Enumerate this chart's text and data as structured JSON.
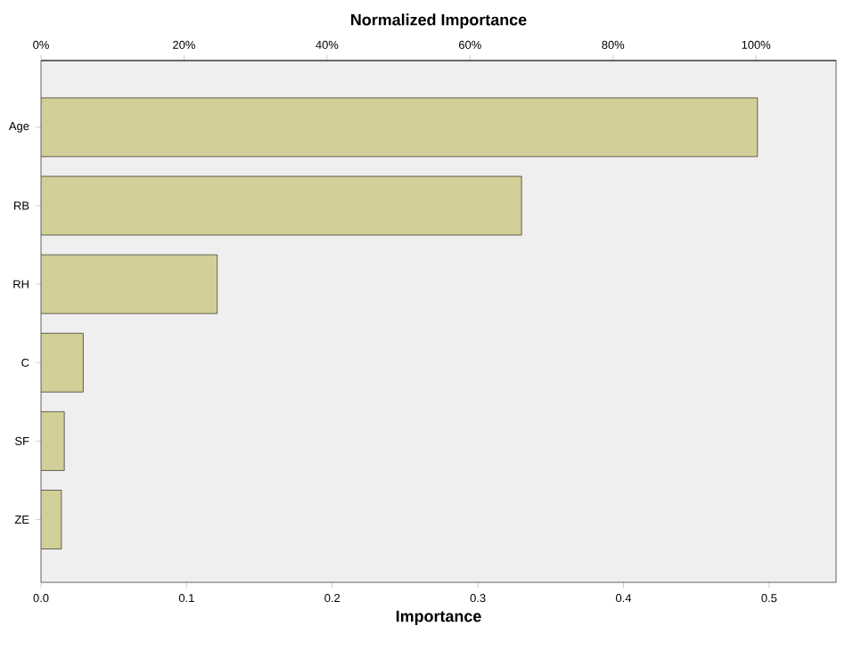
{
  "chart_data": {
    "type": "bar",
    "orientation": "horizontal",
    "xlabel": "Importance",
    "x2label": "Normalized Importance",
    "categories": [
      "Age",
      "RB",
      "RH",
      "C",
      "SF",
      "ZE"
    ],
    "values": [
      0.492,
      0.33,
      0.121,
      0.029,
      0.016,
      0.014
    ],
    "color": "#d3cf98",
    "xlim": [
      0,
      0.546
    ],
    "xticks": [
      {
        "value": 0,
        "label": "0.0"
      },
      0.1,
      0.2,
      0.3,
      0.4,
      0.5
    ],
    "x2lim": [
      0,
      111.2
    ],
    "x2ticks": [
      {
        "value": 0,
        "label": "0%"
      },
      {
        "value": 20,
        "label": "20%"
      },
      {
        "value": 40,
        "label": "40%"
      },
      {
        "value": 60,
        "label": "60%"
      },
      {
        "value": 80,
        "label": "80%"
      },
      {
        "value": 100,
        "label": "100%"
      }
    ]
  }
}
